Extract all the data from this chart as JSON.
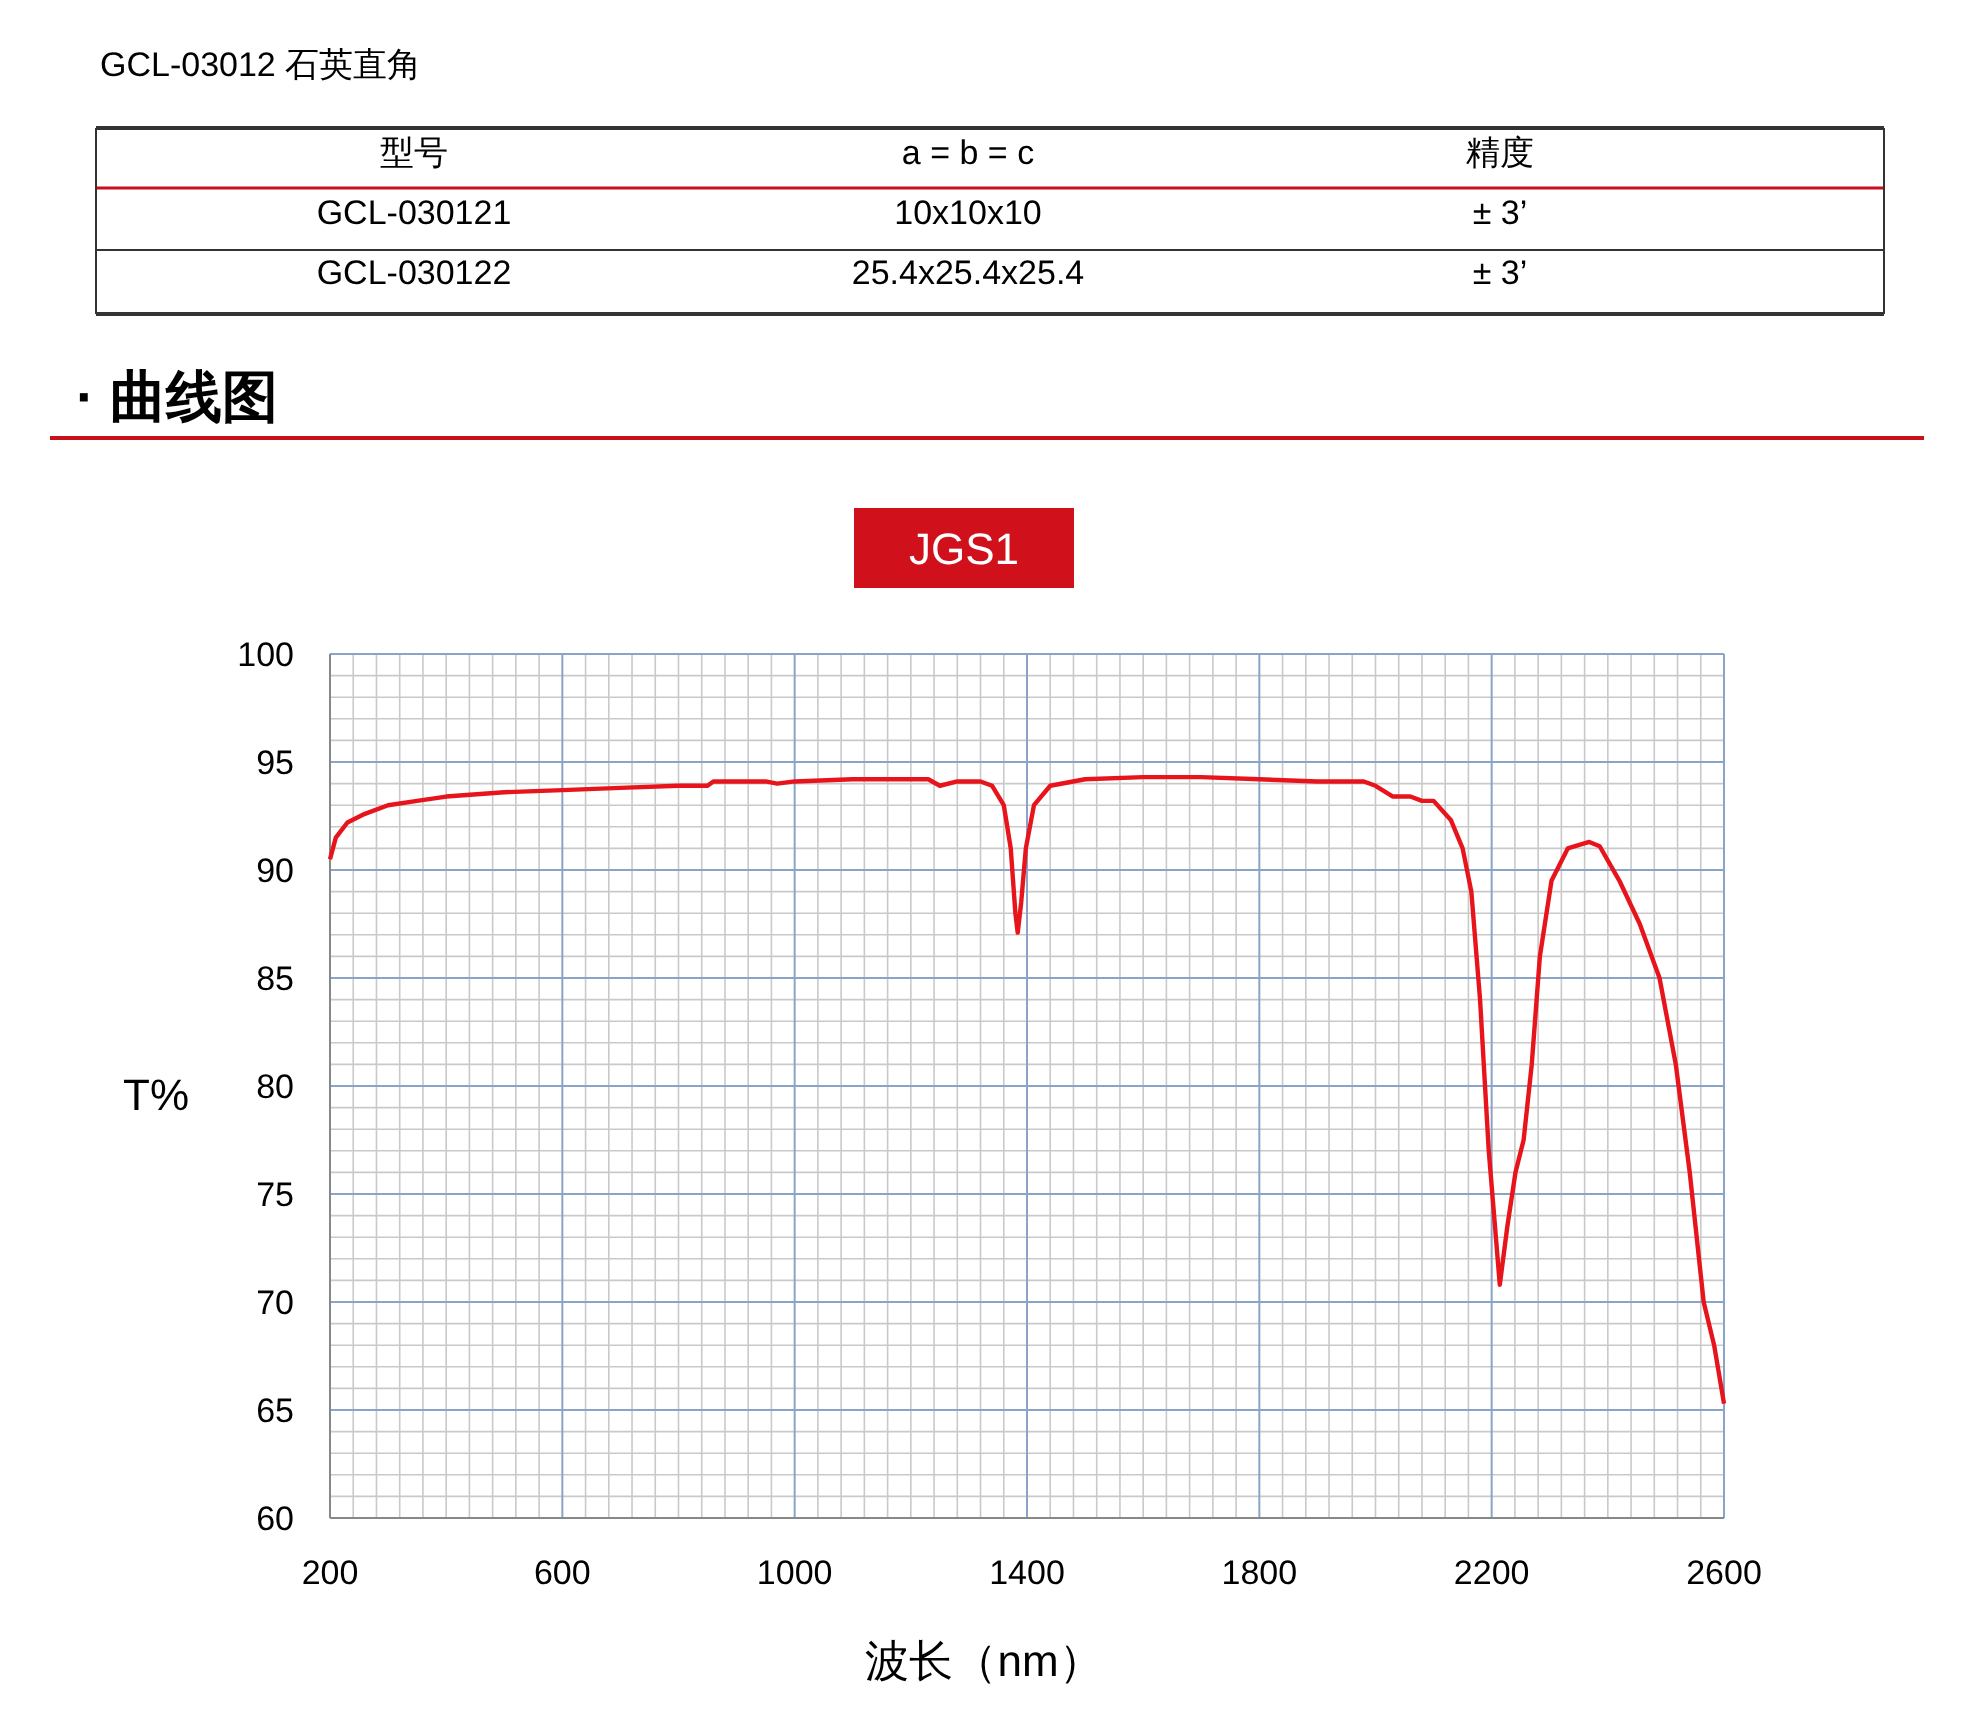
{
  "chart_data": {
    "type": "line",
    "title": "JGS1",
    "xlabel": "波长（nm）",
    "ylabel": "T%",
    "annotations": [
      "GCL-03012 石英直角",
      "型号",
      "a = b = c",
      "精度",
      "GCL-030121",
      "10x10x10",
      "± 3’",
      "GCL-030122",
      "25.4x25.4x25.4",
      "± 3’",
      "· 曲线图"
    ],
    "xlim": [
      200,
      2600
    ],
    "xticks": [
      200,
      600,
      1000,
      1400,
      1800,
      2200,
      2600
    ],
    "ylim": [
      60,
      100
    ],
    "yticks": [
      60,
      65,
      70,
      75,
      80,
      85,
      90,
      95,
      100
    ],
    "grid": true,
    "marker": "none",
    "line_style": "solid",
    "series": [
      {
        "color": "#e8141b",
        "x": [
          200,
          210,
          230,
          260,
          300,
          350,
          400,
          500,
          600,
          700,
          800,
          850,
          860,
          900,
          950,
          970,
          1000,
          1100,
          1200,
          1230,
          1250,
          1280,
          1320,
          1340,
          1360,
          1372,
          1380,
          1384,
          1390,
          1398,
          1412,
          1440,
          1500,
          1600,
          1700,
          1800,
          1900,
          1980,
          2000,
          2030,
          2060,
          2080,
          2100,
          2130,
          2150,
          2165,
          2180,
          2195,
          2214,
          2227,
          2241,
          2255,
          2269,
          2283,
          2303,
          2331,
          2368,
          2386,
          2420,
          2455,
          2489,
          2517,
          2541,
          2565,
          2583,
          2600
        ],
        "values": [
          90.5,
          91.5,
          92.2,
          92.6,
          93.0,
          93.2,
          93.4,
          93.6,
          93.7,
          93.8,
          93.9,
          93.9,
          94.1,
          94.1,
          94.1,
          94.0,
          94.1,
          94.2,
          94.2,
          94.2,
          93.9,
          94.1,
          94.1,
          93.9,
          93.0,
          91.0,
          88.0,
          87.1,
          88.5,
          91.0,
          93.0,
          93.9,
          94.2,
          94.3,
          94.3,
          94.2,
          94.1,
          94.1,
          93.9,
          93.4,
          93.4,
          93.2,
          93.2,
          92.3,
          91.0,
          89.0,
          84.0,
          77.0,
          70.8,
          73.5,
          76.0,
          77.5,
          81.0,
          86.0,
          89.5,
          91.0,
          91.3,
          91.1,
          89.5,
          87.5,
          85.0,
          81.0,
          76.0,
          70.0,
          68.0,
          65.3
        ]
      }
    ]
  }
}
